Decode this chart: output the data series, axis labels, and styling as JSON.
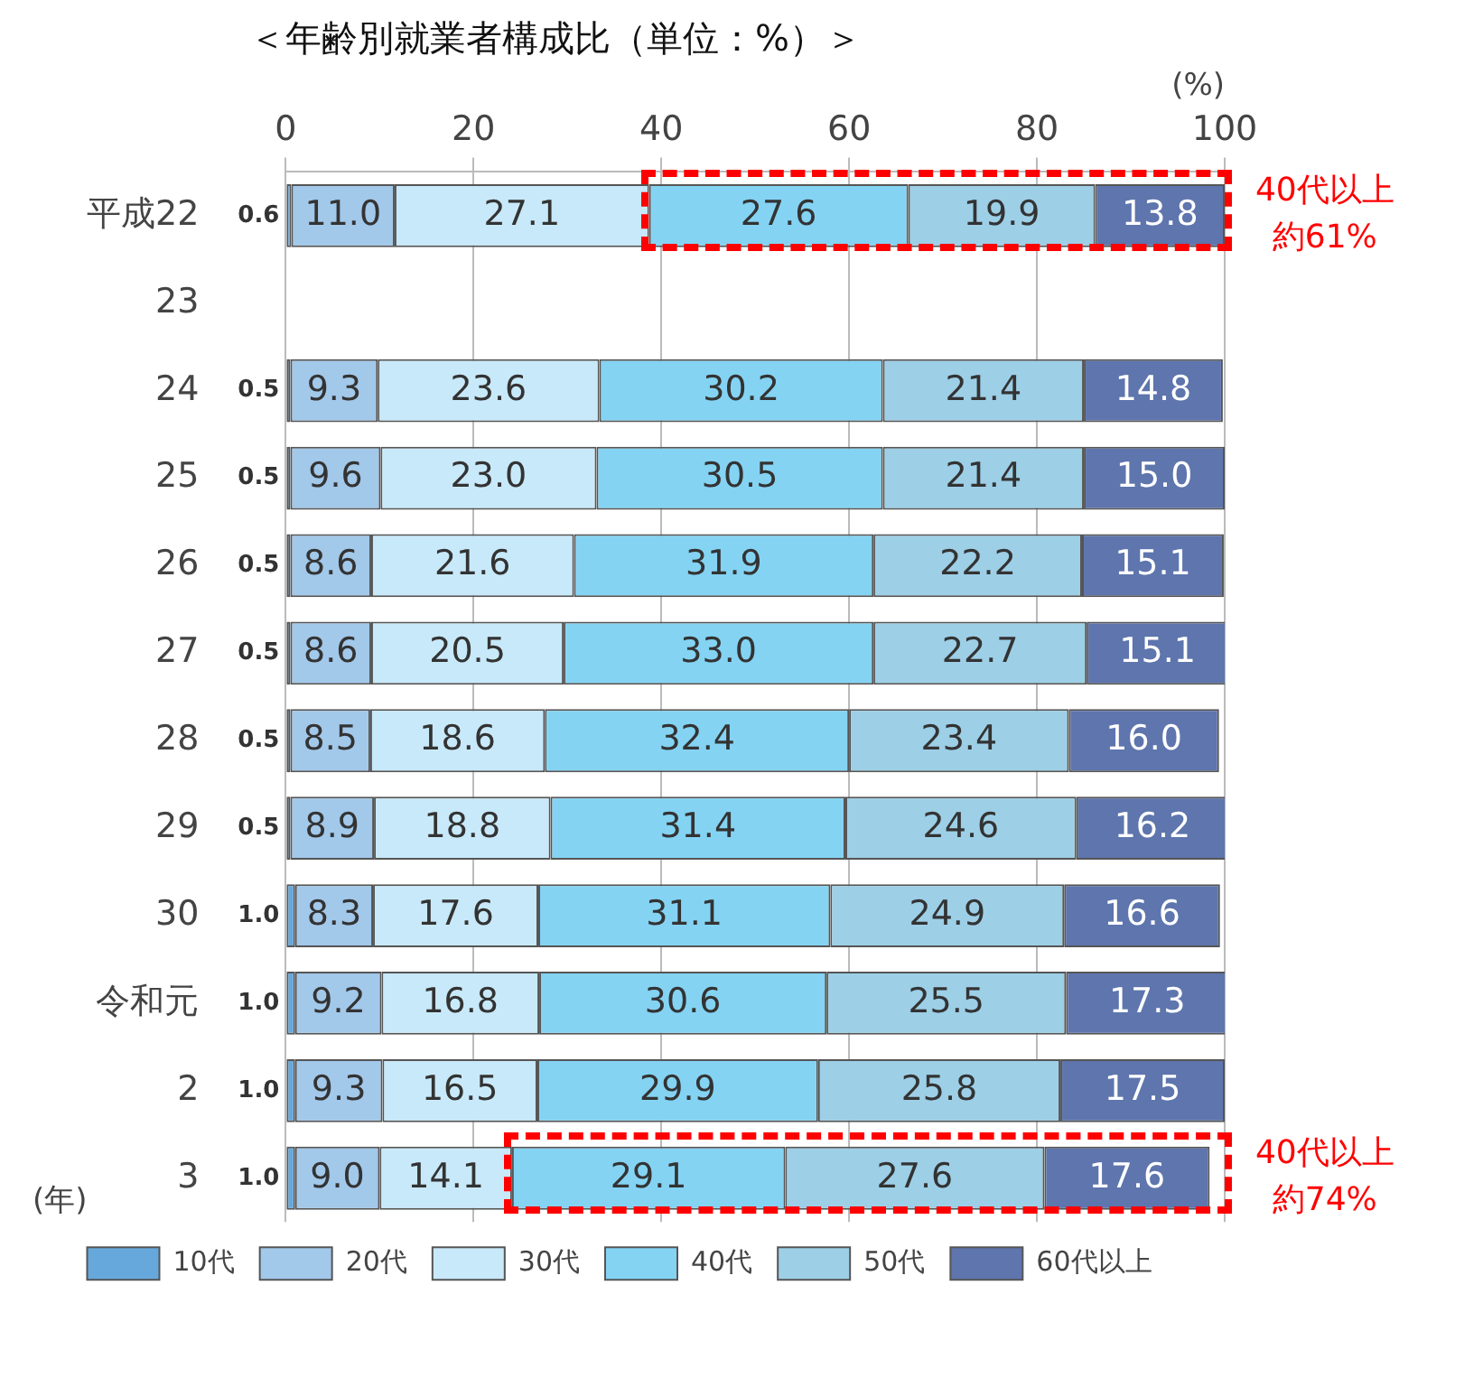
{
  "chart_data": {
    "type": "bar",
    "orientation": "horizontal",
    "stacked": true,
    "title": "＜年齢別就業者構成比（単位：%）＞",
    "xlabel": "(%)",
    "ylabel": "(年)",
    "categories": [
      "平成22",
      "23",
      "24",
      "25",
      "26",
      "27",
      "28",
      "29",
      "30",
      "令和元",
      "2",
      "3"
    ],
    "xlim": [
      0,
      100
    ],
    "xticks": [
      0,
      20,
      40,
      60,
      80,
      100
    ],
    "grid": "x",
    "legend": "bottom",
    "series": [
      {
        "name": "10代",
        "color": "#66a8db",
        "values": [
          0.6,
          null,
          0.5,
          0.5,
          0.5,
          0.5,
          0.5,
          0.5,
          1.0,
          1.0,
          1.0,
          1.0
        ],
        "value_labels": [
          "0.6",
          null,
          "0.5",
          "0.5",
          "0.5",
          "0.5",
          "0.5",
          "0.5",
          "1.0",
          "1.0",
          "1.0",
          "1.0"
        ]
      },
      {
        "name": "20代",
        "color": "#a2c8ea",
        "values": [
          11.0,
          null,
          9.3,
          9.6,
          8.6,
          8.6,
          8.5,
          8.9,
          8.3,
          9.2,
          9.3,
          9.0
        ],
        "value_labels": [
          "11.0",
          null,
          "9.3",
          "9.6",
          "8.6",
          "8.6",
          "8.5",
          "8.9",
          "8.3",
          "9.2",
          "9.3",
          "9.0"
        ]
      },
      {
        "name": "30代",
        "color": "#c8e9f9",
        "values": [
          27.1,
          null,
          23.6,
          23.0,
          21.6,
          20.5,
          18.6,
          18.8,
          17.6,
          16.8,
          16.5,
          14.1
        ],
        "value_labels": [
          "27.1",
          null,
          "23.6",
          "23.0",
          "21.6",
          "20.5",
          "18.6",
          "18.8",
          "17.6",
          "16.8",
          "16.5",
          "14.1"
        ]
      },
      {
        "name": "40代",
        "color": "#84d3f3",
        "values": [
          27.6,
          null,
          30.2,
          30.5,
          31.9,
          33.0,
          32.4,
          31.4,
          31.1,
          30.6,
          29.9,
          29.1
        ],
        "value_labels": [
          "27.6",
          null,
          "30.2",
          "30.5",
          "31.9",
          "33.0",
          "32.4",
          "31.4",
          "31.1",
          "30.6",
          "29.9",
          "29.1"
        ]
      },
      {
        "name": "50代",
        "color": "#9dcfe7",
        "values": [
          19.9,
          null,
          21.4,
          21.4,
          22.2,
          22.7,
          23.4,
          24.6,
          24.9,
          25.5,
          25.8,
          27.6
        ],
        "value_labels": [
          "19.9",
          null,
          "21.4",
          "21.4",
          "22.2",
          "22.7",
          "23.4",
          "24.6",
          "24.9",
          "25.5",
          "25.8",
          "27.6"
        ]
      },
      {
        "name": "60代以上",
        "color": "#5e75ad",
        "values": [
          13.8,
          null,
          14.8,
          15.0,
          15.1,
          15.1,
          16.0,
          16.2,
          16.6,
          17.3,
          17.5,
          17.6
        ],
        "value_labels": [
          "13.8",
          null,
          "14.8",
          "15.0",
          "15.1",
          "15.1",
          "16.0",
          "16.2",
          "16.6",
          "17.3",
          "17.5",
          "17.6"
        ]
      }
    ],
    "annotations": [
      {
        "text": "40代以上約61%",
        "x": 100,
        "y": "平成22"
      },
      "40代以上約74%"
    ]
  }
}
